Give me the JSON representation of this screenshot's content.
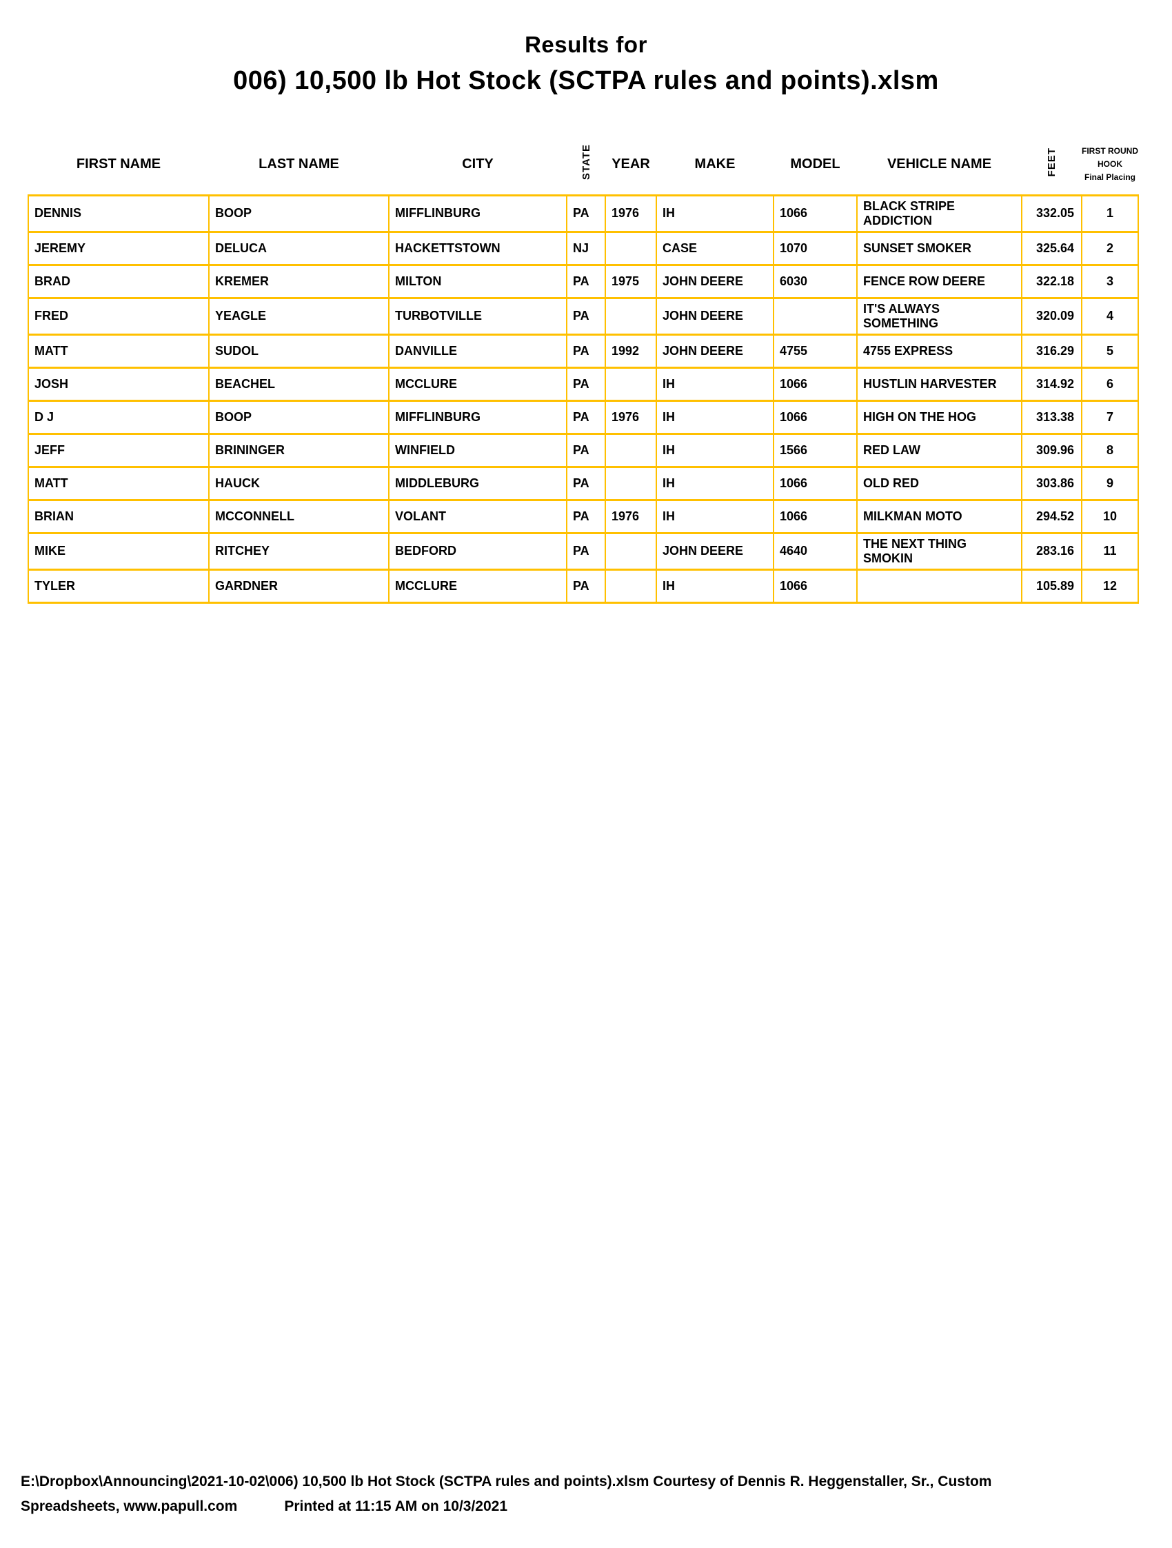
{
  "colors": {
    "table_border": "#FFC000"
  },
  "page": {
    "title_line1": "Results for",
    "title_line2": "006) 10,500 lb Hot Stock (SCTPA rules and points).xlsm"
  },
  "table": {
    "headers": {
      "first_name": "FIRST NAME",
      "last_name": "LAST NAME",
      "city": "CITY",
      "state": "STATE",
      "year": "YEAR",
      "make": "MAKE",
      "model": "MODEL",
      "vehicle_name": "VEHICLE NAME",
      "feet": "FEET",
      "placing_line1": "FIRST ROUND",
      "placing_line2": "HOOK",
      "placing_line3": "Final Placing"
    },
    "rows": [
      {
        "first_name": "DENNIS",
        "last_name": "BOOP",
        "city": "MIFFLINBURG",
        "state": "PA",
        "year": "1976",
        "make": "IH",
        "model": "1066",
        "vehicle_name": "BLACK STRIPE ADDICTION",
        "feet": "332.05",
        "placing": "1"
      },
      {
        "first_name": "JEREMY",
        "last_name": "DELUCA",
        "city": "HACKETTSTOWN",
        "state": "NJ",
        "year": "",
        "make": "CASE",
        "model": "1070",
        "vehicle_name": "SUNSET SMOKER",
        "feet": "325.64",
        "placing": "2"
      },
      {
        "first_name": "BRAD",
        "last_name": "KREMER",
        "city": "MILTON",
        "state": "PA",
        "year": "1975",
        "make": "JOHN DEERE",
        "model": "6030",
        "vehicle_name": "FENCE ROW DEERE",
        "feet": "322.18",
        "placing": "3"
      },
      {
        "first_name": "FRED",
        "last_name": "YEAGLE",
        "city": "TURBOTVILLE",
        "state": "PA",
        "year": "",
        "make": "JOHN DEERE",
        "model": "",
        "vehicle_name": "IT'S ALWAYS SOMETHING",
        "feet": "320.09",
        "placing": "4"
      },
      {
        "first_name": "MATT",
        "last_name": "SUDOL",
        "city": "DANVILLE",
        "state": "PA",
        "year": "1992",
        "make": "JOHN DEERE",
        "model": "4755",
        "vehicle_name": "4755 EXPRESS",
        "feet": "316.29",
        "placing": "5"
      },
      {
        "first_name": "JOSH",
        "last_name": "BEACHEL",
        "city": "MCCLURE",
        "state": "PA",
        "year": "",
        "make": "IH",
        "model": "1066",
        "vehicle_name": "HUSTLIN HARVESTER",
        "feet": "314.92",
        "placing": "6"
      },
      {
        "first_name": "D J",
        "last_name": "BOOP",
        "city": "MIFFLINBURG",
        "state": "PA",
        "year": "1976",
        "make": "IH",
        "model": "1066",
        "vehicle_name": "HIGH ON THE HOG",
        "feet": "313.38",
        "placing": "7"
      },
      {
        "first_name": "JEFF",
        "last_name": "BRININGER",
        "city": "WINFIELD",
        "state": "PA",
        "year": "",
        "make": "IH",
        "model": "1566",
        "vehicle_name": "RED LAW",
        "feet": "309.96",
        "placing": "8"
      },
      {
        "first_name": "MATT",
        "last_name": "HAUCK",
        "city": "MIDDLEBURG",
        "state": "PA",
        "year": "",
        "make": "IH",
        "model": "1066",
        "vehicle_name": "OLD RED",
        "feet": "303.86",
        "placing": "9"
      },
      {
        "first_name": "BRIAN",
        "last_name": "MCCONNELL",
        "city": "VOLANT",
        "state": "PA",
        "year": "1976",
        "make": "IH",
        "model": "1066",
        "vehicle_name": "MILKMAN MOTO",
        "feet": "294.52",
        "placing": "10"
      },
      {
        "first_name": "MIKE",
        "last_name": "RITCHEY",
        "city": "BEDFORD",
        "state": "PA",
        "year": "",
        "make": "JOHN DEERE",
        "model": "4640",
        "vehicle_name": "THE NEXT THING SMOKIN",
        "feet": "283.16",
        "placing": "11"
      },
      {
        "first_name": "TYLER",
        "last_name": "GARDNER",
        "city": "MCCLURE",
        "state": "PA",
        "year": "",
        "make": "IH",
        "model": "1066",
        "vehicle_name": "",
        "feet": "105.89",
        "placing": "12"
      }
    ]
  },
  "footer": {
    "line1": "E:\\Dropbox\\Announcing\\2021-10-02\\006) 10,500 lb Hot Stock (SCTPA rules and points).xlsm  Courtesy of Dennis R. Heggenstaller, Sr., Custom",
    "line2": "Spreadsheets, www.papull.com",
    "printed": "Printed at 11:15 AM on 10/3/2021"
  }
}
